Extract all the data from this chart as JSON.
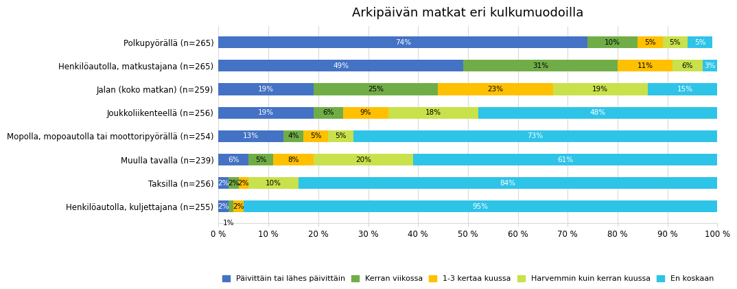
{
  "title": "Arkipäivän matkat eri kulkumuodoilla",
  "categories": [
    "Polkupyörällä (n=265)",
    "Henkilöautolla, matkustajana (n=265)",
    "Jalan (koko matkan) (n=259)",
    "Joukkoliikenteellä (n=256)",
    "Mopolla, mopoautolla tai moottoripyörällä (n=254)",
    "Muulla tavalla (n=239)",
    "Taksilla (n=256)",
    "Henkilöautolla, kuljettajana (n=255)"
  ],
  "series": [
    {
      "name": "Päivittäin tai lähes päivittäin",
      "color": "#4472C4",
      "values": [
        74,
        49,
        19,
        19,
        13,
        6,
        2,
        2
      ]
    },
    {
      "name": "Kerran viikossa",
      "color": "#70AD47",
      "values": [
        10,
        31,
        25,
        6,
        4,
        5,
        2,
        1
      ]
    },
    {
      "name": "1-3 kertaa kuussa",
      "color": "#FFC000",
      "values": [
        5,
        11,
        23,
        9,
        5,
        8,
        2,
        2
      ]
    },
    {
      "name": "Harvemmin kuin kerran kuussa",
      "color": "#C9E14A",
      "values": [
        5,
        6,
        19,
        18,
        5,
        20,
        10,
        0
      ]
    },
    {
      "name": "En koskaan",
      "color": "#2EC4E8",
      "values": [
        5,
        3,
        15,
        48,
        73,
        61,
        84,
        95
      ]
    }
  ],
  "bar_labels": [
    [
      74,
      10,
      5,
      5,
      5
    ],
    [
      49,
      31,
      11,
      6,
      3
    ],
    [
      19,
      25,
      23,
      19,
      15
    ],
    [
      19,
      6,
      9,
      18,
      48
    ],
    [
      13,
      4,
      5,
      5,
      73
    ],
    [
      6,
      5,
      8,
      20,
      61
    ],
    [
      2,
      2,
      2,
      10,
      84
    ],
    [
      2,
      1,
      2,
      0,
      95
    ]
  ],
  "min_label_threshold": 2,
  "xlim": [
    0,
    100
  ],
  "background_color": "#FFFFFF",
  "legend_labels": [
    "Päivittäin tai lähes päivittäin",
    "Kerran viikossa",
    "1-3 kertaa kuussa",
    "Harvemmin kuin kerran kuussa",
    "En koskaan"
  ],
  "legend_colors": [
    "#4472C4",
    "#70AD47",
    "#FFC000",
    "#C9E14A",
    "#2EC4E8"
  ],
  "white_text_colors": [
    "#4472C4",
    "#2EC4E8"
  ],
  "bar_height": 0.5,
  "title_fontsize": 13,
  "tick_fontsize": 8.5,
  "label_fontsize": 7.5,
  "legend_fontsize": 8
}
